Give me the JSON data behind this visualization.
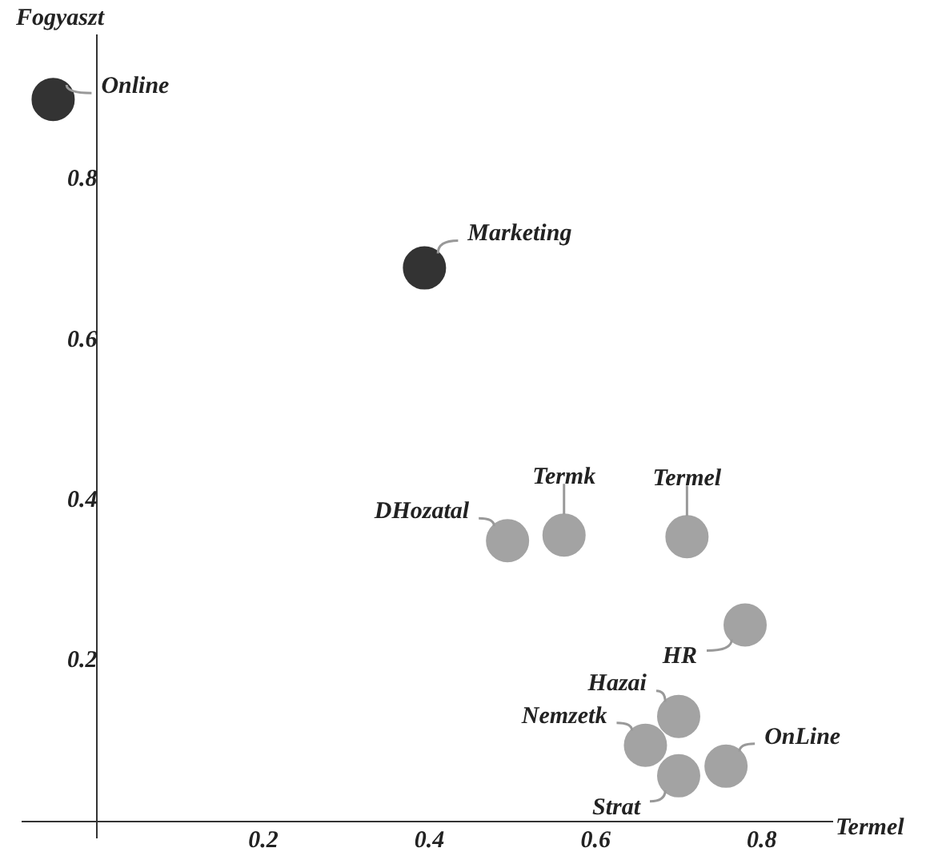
{
  "chart_data": {
    "type": "scatter",
    "xlabel": "Termel",
    "ylabel": "Fogyaszt",
    "xlim": [
      -0.09,
      0.885
    ],
    "ylim": [
      -0.02,
      0.98
    ],
    "xticks": [
      0.2,
      0.4,
      0.6,
      0.8
    ],
    "yticks": [
      0.2,
      0.4,
      0.6,
      0.8
    ],
    "grid": false,
    "legend": false,
    "marker": "circle",
    "series": [
      {
        "x": [
          -0.053,
          0.394,
          0.494,
          0.562,
          0.71,
          0.78,
          0.7,
          0.66,
          0.757,
          0.7
        ],
        "values": [
          0.9,
          0.69,
          0.35,
          0.357,
          0.355,
          0.245,
          0.131,
          0.095,
          0.069,
          0.057
        ],
        "colors": [
          "#333333",
          "#333333",
          "#a3a3a3",
          "#a3a3a3",
          "#a3a3a3",
          "#a3a3a3",
          "#a3a3a3",
          "#a3a3a3",
          "#a3a3a3",
          "#a3a3a3"
        ]
      }
    ],
    "annotations": [
      {
        "text": "Online",
        "x": -0.053,
        "y": 0.9
      },
      {
        "text": "Marketing",
        "x": 0.394,
        "y": 0.69
      },
      {
        "text": "DHozatal",
        "x": 0.494,
        "y": 0.35
      },
      {
        "text": "Termk",
        "x": 0.562,
        "y": 0.357
      },
      {
        "text": "Termel",
        "x": 0.71,
        "y": 0.355
      },
      {
        "text": "HR",
        "x": 0.78,
        "y": 0.245
      },
      {
        "text": "Hazai",
        "x": 0.7,
        "y": 0.131
      },
      {
        "text": "Nemzetk",
        "x": 0.66,
        "y": 0.095
      },
      {
        "text": "OnLine",
        "x": 0.757,
        "y": 0.069
      },
      {
        "text": "Strat",
        "x": 0.7,
        "y": 0.057
      }
    ]
  }
}
